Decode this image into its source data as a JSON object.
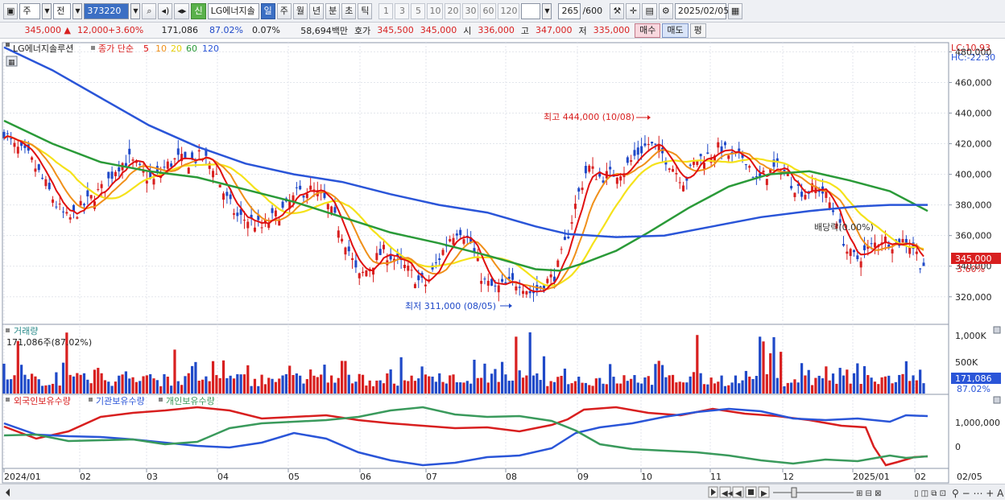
{
  "toolbar": {
    "period_type": "주",
    "prev_label": "전",
    "stock_code": "373220",
    "badge_new": "신",
    "stock_name": "LG에너지솔",
    "period_tabs": [
      "일",
      "주",
      "월",
      "년",
      "분",
      "초",
      "틱"
    ],
    "active_period": "일",
    "intervals": [
      "1",
      "3",
      "5",
      "10",
      "20",
      "30",
      "60",
      "120"
    ],
    "count_value": "265",
    "count_total": "/600",
    "date_value": "2025/02/05"
  },
  "info": {
    "price": "345,000",
    "change_arrow": "▲",
    "change": "12,000",
    "change_pct": "+3.60%",
    "volume": "171,086",
    "volume_ratio": "87.02%",
    "turnover": "0.07%",
    "amount": "58,694백만",
    "quote_label": "호가",
    "ask": "345,500",
    "bid": "345,000",
    "open_label": "시",
    "open": "336,000",
    "high_label": "고",
    "high": "347,000",
    "low_label": "저",
    "low": "335,000",
    "buy_label": "매수",
    "sell_label": "매도",
    "eval_label": "평"
  },
  "colors": {
    "up": "#d81f1f",
    "down": "#1f49c8",
    "ma5": "#e01010",
    "ma10": "#f0901a",
    "ma20": "#f5e21a",
    "ma60": "#2a9a38",
    "ma120": "#2a55d8",
    "foreign": "#d81f1f",
    "institution": "#2a55d8",
    "individual": "#3a9a5c"
  },
  "price_panel": {
    "legend_name": "LG에너지솔루션",
    "legend_type": "종가 단순",
    "legend_periods": [
      "5",
      "10",
      "20",
      "60",
      "120"
    ],
    "lc": "LC:10.93",
    "hc": "HC:-22.30",
    "y_ticks": [
      "460,000",
      "440,000",
      "420,000",
      "400,000",
      "380,000",
      "360,000",
      "340,000",
      "320,000"
    ],
    "top_tick": "480,000",
    "current_price_tag": "345,000",
    "current_pct_tag": "3.60%",
    "high_annotation": "최고 444,000 (10/08)",
    "low_annotation": "최저 311,000 (08/05)",
    "dividend_annotation": "배당락(0.00%)"
  },
  "volume_panel": {
    "title": "거래량",
    "subtitle": "171,086주(87.02%)",
    "y_ticks": [
      "1,000K",
      "500K"
    ],
    "current_tag": "171,086",
    "current_pct_tag": "87.02%"
  },
  "holding_panel": {
    "legend": [
      "외국인보유수량",
      "기관보유수량",
      "개인보유수량"
    ],
    "y_ticks": [
      "1,000,000",
      "0"
    ]
  },
  "x_axis": {
    "labels": [
      "2024/01",
      "02",
      "03",
      "04",
      "05",
      "06",
      "07",
      "08",
      "09",
      "10",
      "11",
      "12",
      "2025/01",
      "02",
      "02/05"
    ]
  },
  "chart_data": {
    "type": "line",
    "title": "LG에너지솔루션",
    "ylim": [
      302000,
      486000
    ],
    "price_points": [
      [
        0,
        428000
      ],
      [
        12,
        418000
      ],
      [
        30,
        412000
      ],
      [
        50,
        395000
      ],
      [
        65,
        380000
      ],
      [
        80,
        370000
      ],
      [
        95,
        378000
      ],
      [
        110,
        385000
      ],
      [
        125,
        392000
      ],
      [
        140,
        405000
      ],
      [
        155,
        410000
      ],
      [
        170,
        402000
      ],
      [
        185,
        395000
      ],
      [
        200,
        405000
      ],
      [
        215,
        410000
      ],
      [
        230,
        408000
      ],
      [
        245,
        412000
      ],
      [
        260,
        405000
      ],
      [
        275,
        385000
      ],
      [
        290,
        372000
      ],
      [
        305,
        370000
      ],
      [
        320,
        365000
      ],
      [
        335,
        372000
      ],
      [
        350,
        378000
      ],
      [
        365,
        388000
      ],
      [
        380,
        390000
      ],
      [
        395,
        385000
      ],
      [
        410,
        372000
      ],
      [
        425,
        355000
      ],
      [
        440,
        332000
      ],
      [
        455,
        340000
      ],
      [
        470,
        350000
      ],
      [
        485,
        345000
      ],
      [
        500,
        338000
      ],
      [
        515,
        330000
      ],
      [
        525,
        328000
      ],
      [
        540,
        345000
      ],
      [
        555,
        360000
      ],
      [
        565,
        365000
      ],
      [
        580,
        355000
      ],
      [
        595,
        330000
      ],
      [
        610,
        325000
      ],
      [
        625,
        328000
      ],
      [
        640,
        330000
      ],
      [
        655,
        322000
      ],
      [
        670,
        328000
      ],
      [
        685,
        335000
      ],
      [
        700,
        360000
      ],
      [
        712,
        385000
      ],
      [
        725,
        405000
      ],
      [
        740,
        398000
      ],
      [
        755,
        400000
      ],
      [
        770,
        403000
      ],
      [
        785,
        413000
      ],
      [
        800,
        420000
      ],
      [
        815,
        415000
      ],
      [
        830,
        405000
      ],
      [
        845,
        395000
      ],
      [
        860,
        410000
      ],
      [
        875,
        412000
      ],
      [
        890,
        418000
      ],
      [
        905,
        410000
      ],
      [
        920,
        412000
      ],
      [
        935,
        395000
      ],
      [
        950,
        402000
      ],
      [
        965,
        405000
      ],
      [
        980,
        393000
      ],
      [
        995,
        388000
      ],
      [
        1010,
        392000
      ],
      [
        1022,
        385000
      ],
      [
        1035,
        370000
      ],
      [
        1048,
        348000
      ],
      [
        1060,
        345000
      ],
      [
        1075,
        352000
      ],
      [
        1090,
        358000
      ],
      [
        1105,
        355000
      ],
      [
        1120,
        357000
      ],
      [
        1130,
        352000
      ],
      [
        1140,
        340000
      ],
      [
        1147,
        345000
      ]
    ],
    "ma60_points": [
      [
        0,
        435000
      ],
      [
        60,
        420000
      ],
      [
        120,
        408000
      ],
      [
        180,
        402000
      ],
      [
        240,
        398000
      ],
      [
        300,
        390000
      ],
      [
        360,
        382000
      ],
      [
        420,
        372000
      ],
      [
        480,
        362000
      ],
      [
        540,
        355000
      ],
      [
        600,
        347000
      ],
      [
        660,
        338000
      ],
      [
        690,
        337000
      ],
      [
        720,
        342000
      ],
      [
        760,
        350000
      ],
      [
        800,
        362000
      ],
      [
        850,
        378000
      ],
      [
        900,
        392000
      ],
      [
        950,
        400000
      ],
      [
        1000,
        402000
      ],
      [
        1050,
        396000
      ],
      [
        1100,
        389000
      ],
      [
        1147,
        376000
      ]
    ],
    "ma120_points": [
      [
        0,
        483000
      ],
      [
        60,
        468000
      ],
      [
        120,
        450000
      ],
      [
        180,
        432000
      ],
      [
        240,
        418000
      ],
      [
        300,
        407000
      ],
      [
        360,
        400000
      ],
      [
        420,
        395000
      ],
      [
        480,
        387000
      ],
      [
        540,
        380000
      ],
      [
        600,
        375000
      ],
      [
        660,
        366000
      ],
      [
        700,
        361000
      ],
      [
        760,
        359000
      ],
      [
        820,
        360000
      ],
      [
        880,
        366000
      ],
      [
        940,
        372000
      ],
      [
        1000,
        376000
      ],
      [
        1060,
        379000
      ],
      [
        1100,
        380000
      ],
      [
        1147,
        380000
      ]
    ],
    "volume_max": 1050000,
    "foreign_points": [
      [
        0,
        530
      ],
      [
        40,
        545
      ],
      [
        80,
        536
      ],
      [
        120,
        518
      ],
      [
        160,
        513
      ],
      [
        200,
        510
      ],
      [
        240,
        506
      ],
      [
        280,
        510
      ],
      [
        320,
        520
      ],
      [
        360,
        518
      ],
      [
        400,
        516
      ],
      [
        440,
        522
      ],
      [
        480,
        526
      ],
      [
        520,
        529
      ],
      [
        560,
        532
      ],
      [
        600,
        531
      ],
      [
        640,
        536
      ],
      [
        680,
        528
      ],
      [
        700,
        521
      ],
      [
        720,
        509
      ],
      [
        760,
        506
      ],
      [
        800,
        513
      ],
      [
        840,
        516
      ],
      [
        880,
        508
      ],
      [
        920,
        514
      ],
      [
        960,
        517
      ],
      [
        1000,
        522
      ],
      [
        1040,
        529
      ],
      [
        1070,
        531
      ],
      [
        1080,
        555
      ],
      [
        1095,
        578
      ],
      [
        1110,
        574
      ],
      [
        1130,
        568
      ],
      [
        1147,
        567
      ]
    ],
    "institution_points": [
      [
        0,
        526
      ],
      [
        40,
        540
      ],
      [
        80,
        542
      ],
      [
        120,
        543
      ],
      [
        160,
        546
      ],
      [
        200,
        550
      ],
      [
        240,
        554
      ],
      [
        280,
        556
      ],
      [
        320,
        550
      ],
      [
        360,
        538
      ],
      [
        400,
        545
      ],
      [
        440,
        562
      ],
      [
        480,
        572
      ],
      [
        520,
        578
      ],
      [
        560,
        575
      ],
      [
        600,
        568
      ],
      [
        640,
        566
      ],
      [
        680,
        557
      ],
      [
        710,
        538
      ],
      [
        740,
        531
      ],
      [
        780,
        526
      ],
      [
        820,
        518
      ],
      [
        860,
        512
      ],
      [
        900,
        508
      ],
      [
        940,
        511
      ],
      [
        980,
        520
      ],
      [
        1020,
        522
      ],
      [
        1060,
        520
      ],
      [
        1100,
        524
      ],
      [
        1120,
        516
      ],
      [
        1147,
        517
      ]
    ],
    "individual_points": [
      [
        0,
        541
      ],
      [
        40,
        540
      ],
      [
        80,
        548
      ],
      [
        120,
        547
      ],
      [
        160,
        546
      ],
      [
        200,
        552
      ],
      [
        240,
        549
      ],
      [
        280,
        532
      ],
      [
        320,
        526
      ],
      [
        360,
        524
      ],
      [
        400,
        522
      ],
      [
        440,
        518
      ],
      [
        480,
        510
      ],
      [
        520,
        506
      ],
      [
        560,
        515
      ],
      [
        600,
        518
      ],
      [
        640,
        517
      ],
      [
        680,
        523
      ],
      [
        710,
        535
      ],
      [
        740,
        552
      ],
      [
        780,
        558
      ],
      [
        820,
        560
      ],
      [
        860,
        562
      ],
      [
        900,
        566
      ],
      [
        940,
        572
      ],
      [
        980,
        576
      ],
      [
        1020,
        571
      ],
      [
        1060,
        573
      ],
      [
        1100,
        566
      ],
      [
        1120,
        569
      ],
      [
        1147,
        567
      ]
    ]
  }
}
